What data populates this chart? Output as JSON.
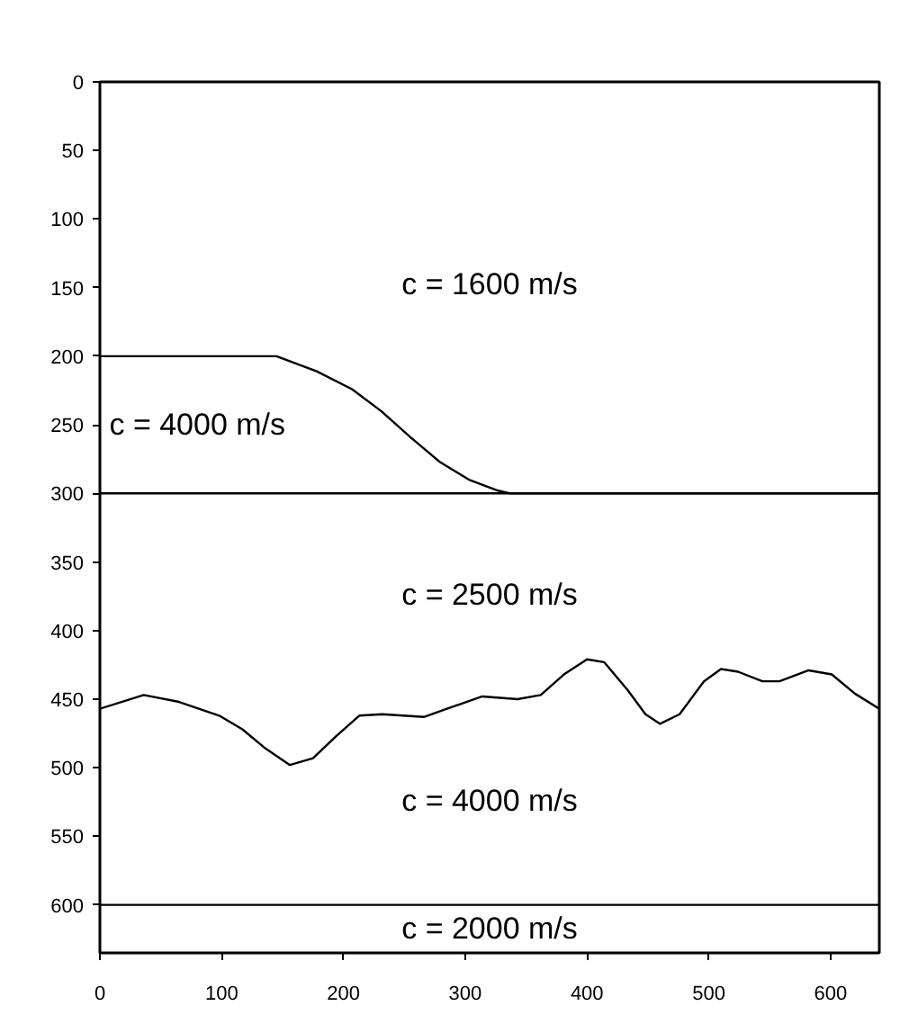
{
  "chart_data": {
    "type": "line",
    "xlim": [
      0,
      640
    ],
    "ylim": [
      635,
      0
    ],
    "xticks": [
      0,
      100,
      200,
      300,
      400,
      500,
      600
    ],
    "yticks": [
      0,
      50,
      100,
      150,
      200,
      250,
      300,
      350,
      400,
      450,
      500,
      550,
      600
    ],
    "grid": false,
    "marker": "none",
    "line_style": "solid",
    "series": [
      {
        "color": "#000000",
        "x": [
          0,
          145,
          178,
          207,
          231,
          255,
          279,
          303,
          327,
          337,
          640
        ],
        "values": [
          200,
          200,
          211,
          224,
          240,
          259,
          277,
          290,
          298,
          300,
          300
        ]
      },
      {
        "color": "#000000",
        "x": [
          0,
          640
        ],
        "values": [
          300,
          300
        ]
      },
      {
        "color": "#000000",
        "x": [
          0,
          36,
          65,
          98,
          117,
          136,
          156,
          175,
          194,
          213,
          232,
          266,
          285,
          314,
          343,
          362,
          381,
          400,
          414,
          433,
          448,
          460,
          476,
          496,
          510,
          524,
          544,
          558,
          582,
          601,
          620,
          640
        ],
        "values": [
          457,
          447,
          452,
          462,
          472,
          486,
          498,
          493,
          477,
          462,
          461,
          463,
          457,
          448,
          450,
          447,
          432,
          421,
          423,
          443,
          461,
          468,
          461,
          437,
          428,
          430,
          437,
          437,
          429,
          432,
          446,
          457
        ]
      },
      {
        "color": "#000000",
        "x": [
          0,
          640
        ],
        "values": [
          600,
          600
        ]
      }
    ],
    "annotations": [
      "c = 1600 m/s",
      "c = 4000 m/s",
      "c = 2500 m/s",
      "c = 4000 m/s",
      "c = 2000 m/s"
    ]
  }
}
